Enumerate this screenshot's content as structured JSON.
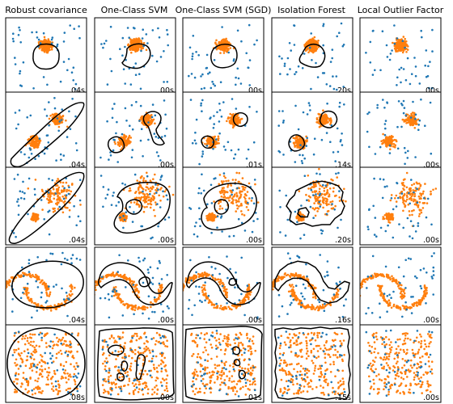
{
  "columns": [
    {
      "title": "Robust covariance",
      "times": [
        ".04s",
        ".04s",
        ".04s",
        ".04s",
        ".08s"
      ]
    },
    {
      "title": "One-Class SVM",
      "times": [
        ".00s",
        ".00s",
        ".00s",
        ".00s",
        ".00s"
      ]
    },
    {
      "title": "One-Class SVM (SGD)",
      "times": [
        ".00s",
        ".01s",
        ".00s",
        ".00s",
        ".01s"
      ]
    },
    {
      "title": "Isolation Forest",
      "times": [
        ".20s",
        ".14s",
        ".20s",
        ".16s",
        ".15s"
      ]
    },
    {
      "title": "Local Outlier Factor",
      "times": [
        ".00s",
        ".00s",
        ".00s",
        ".00s",
        ".00s"
      ]
    }
  ],
  "chart_data": {
    "type": "scatter",
    "layout": "5x5 grid of small-multiple scatter plots; rows are datasets, columns are algorithms",
    "xlim": [
      -7,
      7
    ],
    "ylim": [
      -7,
      7
    ],
    "grid": false,
    "ticks": false,
    "colors": {
      "inlier": "#ff7f0e",
      "outlier": "#1f77b4",
      "decision_boundary": "#000000"
    },
    "series_per_panel": [
      "inliers",
      "outliers",
      "decision boundary contour (not drawn for Local Outlier Factor)"
    ],
    "datasets": [
      {
        "row": 1,
        "inlier_clusters": [
          {
            "center": [
              0,
              2
            ],
            "spread": 0.5,
            "n": 255
          }
        ],
        "uniform_inliers": 0,
        "n_outliers": 45
      },
      {
        "row": 2,
        "inlier_clusters": [
          {
            "center": [
              -2,
              -2
            ],
            "spread": 0.5,
            "n": 128
          },
          {
            "center": [
              2,
              2
            ],
            "spread": 0.5,
            "n": 127
          }
        ],
        "uniform_inliers": 0,
        "n_outliers": 45
      },
      {
        "row": 3,
        "inlier_clusters": [
          {
            "center": [
              2,
              2
            ],
            "spread": 1.5,
            "n": 128
          },
          {
            "center": [
              -2,
              -2
            ],
            "spread": 0.3,
            "n": 127
          }
        ],
        "uniform_inliers": 0,
        "n_outliers": 45
      },
      {
        "row": 4,
        "inlier_clusters": [
          {
            "shape": "two interleaving moons",
            "n": 255
          }
        ],
        "uniform_inliers": 0,
        "n_outliers": 45
      },
      {
        "row": 5,
        "inlier_clusters": [],
        "uniform_inliers": 255,
        "n_outliers": 45
      }
    ]
  }
}
